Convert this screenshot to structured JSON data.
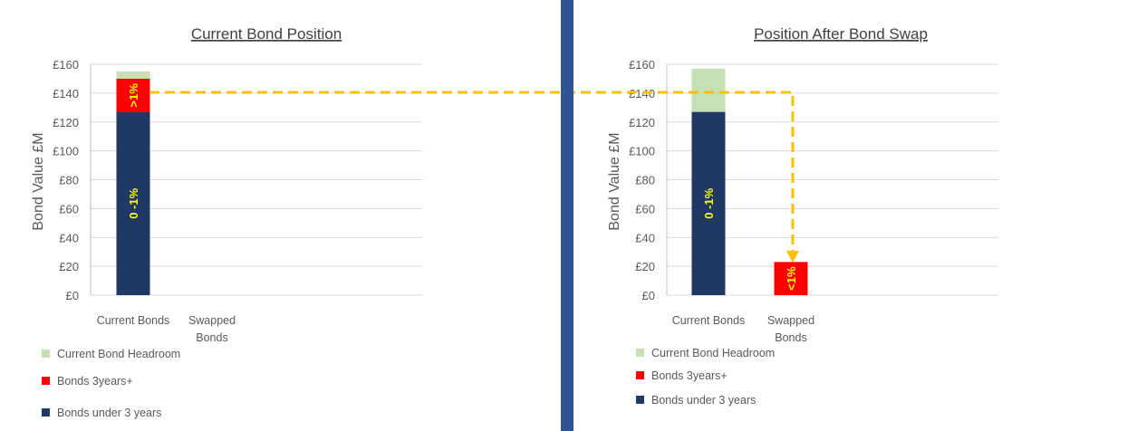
{
  "colors": {
    "headroom": "#c5e0b4",
    "bonds3plus": "#ff0000",
    "under3": "#1f3864",
    "divider": "#2f5496",
    "arrow": "#ffc000",
    "label": "#ffff00"
  },
  "chart_data": [
    {
      "type": "bar",
      "stacked": true,
      "title": "Current Bond Position",
      "ylabel": "Bond Value £M",
      "ylim": [
        0,
        160
      ],
      "yticks": [
        "£0",
        "£20",
        "£40",
        "£60",
        "£80",
        "£100",
        "£120",
        "£140",
        "£160"
      ],
      "categories": [
        {
          "lines": [
            "Current Bonds"
          ]
        },
        {
          "lines": [
            "Swapped",
            "Bonds"
          ]
        }
      ],
      "series": [
        {
          "name": "Bonds under 3 years",
          "color_key": "under3",
          "values": [
            127,
            0
          ],
          "labels": [
            "0 -1%",
            ""
          ]
        },
        {
          "name": "Bonds 3years+",
          "color_key": "bonds3plus",
          "values": [
            23,
            0
          ],
          "labels": [
            ">1%",
            ""
          ]
        },
        {
          "name": "Current Bond Headroom",
          "color_key": "headroom",
          "values": [
            5,
            0
          ],
          "labels": [
            "",
            ""
          ]
        }
      ],
      "legend": [
        {
          "text": "Current Bond Headroom",
          "color_key": "headroom"
        },
        {
          "text": "Bonds 3years+",
          "color_key": "bonds3plus"
        },
        {
          "text": "Bonds under 3 years",
          "color_key": "under3"
        }
      ]
    },
    {
      "type": "bar",
      "stacked": true,
      "title": "Position After Bond Swap",
      "ylabel": "Bond Value £M",
      "ylim": [
        0,
        160
      ],
      "yticks": [
        "£0",
        "£20",
        "£40",
        "£60",
        "£80",
        "£100",
        "£120",
        "£140",
        "£160"
      ],
      "categories": [
        {
          "lines": [
            "Current Bonds"
          ]
        },
        {
          "lines": [
            "Swapped",
            "Bonds"
          ]
        }
      ],
      "series": [
        {
          "name": "Bonds under 3 years",
          "color_key": "under3",
          "values": [
            127,
            0
          ],
          "labels": [
            "0 -1%",
            ""
          ]
        },
        {
          "name": "Bonds 3years+",
          "color_key": "bonds3plus",
          "values": [
            0,
            23
          ],
          "labels": [
            "",
            "<1%"
          ]
        },
        {
          "name": "Current Bond Headroom",
          "color_key": "headroom",
          "values": [
            30,
            0
          ],
          "labels": [
            "",
            ""
          ]
        }
      ],
      "legend": [
        {
          "text": "Current Bond Headroom",
          "color_key": "headroom"
        },
        {
          "text": "Bonds 3years+",
          "color_key": "bonds3plus"
        },
        {
          "text": "Bonds under 3 years",
          "color_key": "under3"
        }
      ]
    }
  ]
}
